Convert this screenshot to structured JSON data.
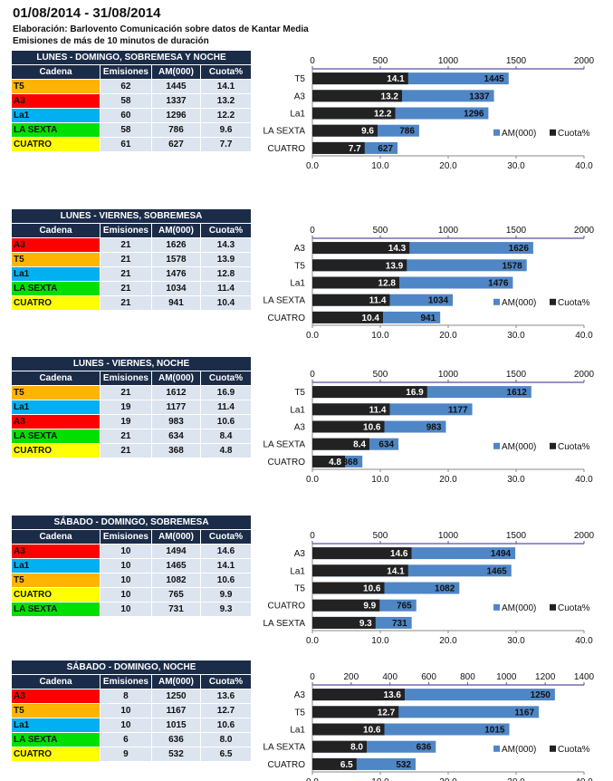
{
  "header": {
    "title": "01/08/2014 - 31/08/2014",
    "source": "Elaboración:  Barlovento Comunicación  sobre datos de Kantar Media",
    "note": "Emisiones de más de 10 minutos de duración"
  },
  "columns": [
    "Cadena",
    "Emisiones",
    "AM(000)",
    "Cuota%"
  ],
  "channel_colors": {
    "T5": "#ffb400",
    "A3": "#ff0000",
    "La1": "#00b0f0",
    "LA SEXTA": "#00e000",
    "CUATRO": "#ffff00"
  },
  "colors": {
    "am": "#4f86c6",
    "cuota": "#222222",
    "header": "#1b2c48",
    "cell": "#dce4ef"
  },
  "chart_data": [
    {
      "type": "bar",
      "title": "LUNES - DOMINGO, SOBREMESA Y NOCHE",
      "categories": [
        "T5",
        "A3",
        "La1",
        "LA SEXTA",
        "CUATRO"
      ],
      "emisiones": [
        62,
        58,
        60,
        58,
        61
      ],
      "series": [
        {
          "name": "AM(000)",
          "values": [
            1445,
            1337,
            1296,
            786,
            627
          ]
        },
        {
          "name": "Cuota%",
          "values": [
            14.1,
            13.2,
            12.2,
            9.6,
            7.7
          ]
        }
      ],
      "top_axis": {
        "range": [
          0,
          2000
        ],
        "ticks": [
          "0",
          "500",
          "1000",
          "1500",
          "2000"
        ]
      },
      "bottom_axis": {
        "range": [
          0,
          40
        ],
        "ticks": [
          "0.0",
          "10.0",
          "20.0",
          "30.0",
          "40.0"
        ]
      },
      "legend": "bottom-right"
    },
    {
      "type": "bar",
      "title": "LUNES - VIERNES, SOBREMESA",
      "categories": [
        "A3",
        "T5",
        "La1",
        "LA SEXTA",
        "CUATRO"
      ],
      "emisiones": [
        21,
        21,
        21,
        21,
        21
      ],
      "series": [
        {
          "name": "AM(000)",
          "values": [
            1626,
            1578,
            1476,
            1034,
            941
          ]
        },
        {
          "name": "Cuota%",
          "values": [
            14.3,
            13.9,
            12.8,
            11.4,
            10.4
          ]
        }
      ],
      "top_axis": {
        "range": [
          0,
          2000
        ],
        "ticks": [
          "0",
          "500",
          "1000",
          "1500",
          "2000"
        ]
      },
      "bottom_axis": {
        "range": [
          0,
          40
        ],
        "ticks": [
          "0.0",
          "10.0",
          "20.0",
          "30.0",
          "40.0"
        ]
      },
      "legend": "bottom-right"
    },
    {
      "type": "bar",
      "title": "LUNES - VIERNES, NOCHE",
      "categories": [
        "T5",
        "La1",
        "A3",
        "LA SEXTA",
        "CUATRO"
      ],
      "emisiones": [
        21,
        19,
        19,
        21,
        21
      ],
      "series": [
        {
          "name": "AM(000)",
          "values": [
            1612,
            1177,
            983,
            634,
            368
          ]
        },
        {
          "name": "Cuota%",
          "values": [
            16.9,
            11.4,
            10.6,
            8.4,
            4.8
          ]
        }
      ],
      "top_axis": {
        "range": [
          0,
          2000
        ],
        "ticks": [
          "0",
          "500",
          "1000",
          "1500",
          "2000"
        ]
      },
      "bottom_axis": {
        "range": [
          0,
          40
        ],
        "ticks": [
          "0.0",
          "10.0",
          "20.0",
          "30.0",
          "40.0"
        ]
      },
      "legend": "bottom-right"
    },
    {
      "type": "bar",
      "title": "SÁBADO - DOMINGO, SOBREMESA",
      "categories": [
        "A3",
        "La1",
        "T5",
        "CUATRO",
        "LA SEXTA"
      ],
      "emisiones": [
        10,
        10,
        10,
        10,
        10
      ],
      "series": [
        {
          "name": "AM(000)",
          "values": [
            1494,
            1465,
            1082,
            765,
            731
          ]
        },
        {
          "name": "Cuota%",
          "values": [
            14.6,
            14.1,
            10.6,
            9.9,
            9.3
          ]
        }
      ],
      "top_axis": {
        "range": [
          0,
          2000
        ],
        "ticks": [
          "0",
          "500",
          "1000",
          "1500",
          "2000"
        ]
      },
      "bottom_axis": {
        "range": [
          0,
          40
        ],
        "ticks": [
          "0.0",
          "10.0",
          "20.0",
          "30.0",
          "40.0"
        ]
      },
      "legend": "bottom-right"
    },
    {
      "type": "bar",
      "title": "SÁBADO - DOMINGO, NOCHE",
      "categories": [
        "A3",
        "T5",
        "La1",
        "LA SEXTA",
        "CUATRO"
      ],
      "emisiones": [
        8,
        10,
        10,
        6,
        9
      ],
      "series": [
        {
          "name": "AM(000)",
          "values": [
            1250,
            1167,
            1015,
            636,
            532
          ]
        },
        {
          "name": "Cuota%",
          "values": [
            13.6,
            12.7,
            10.6,
            8.0,
            6.5
          ]
        }
      ],
      "top_axis": {
        "range": [
          0,
          1400
        ],
        "ticks": [
          "0",
          "200",
          "400",
          "600",
          "800",
          "1000",
          "1200",
          "1400"
        ]
      },
      "bottom_axis": {
        "range": [
          0,
          40
        ],
        "ticks": [
          "0.0",
          "10.0",
          "20.0",
          "30.0",
          "40.0"
        ]
      },
      "legend": "bottom-right"
    }
  ]
}
